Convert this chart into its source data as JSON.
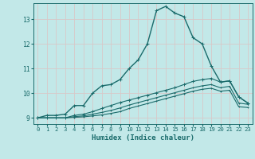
{
  "xlabel": "Humidex (Indice chaleur)",
  "background_color": "#c2e8e8",
  "grid_color": "#d8c8c8",
  "line_color": "#1a6b6b",
  "xlim": [
    -0.5,
    23.5
  ],
  "ylim": [
    8.75,
    13.65
  ],
  "yticks": [
    9,
    10,
    11,
    12,
    13
  ],
  "xticks": [
    0,
    1,
    2,
    3,
    4,
    5,
    6,
    7,
    8,
    9,
    10,
    11,
    12,
    13,
    14,
    15,
    16,
    17,
    18,
    19,
    20,
    21,
    22,
    23
  ],
  "series": [
    {
      "x": [
        0,
        1,
        2,
        3,
        4,
        5,
        6,
        7,
        8,
        9,
        10,
        11,
        12,
        13,
        14,
        15,
        16,
        17,
        18,
        19,
        20,
        21,
        22,
        23
      ],
      "y": [
        9.0,
        9.1,
        9.1,
        9.15,
        9.5,
        9.5,
        10.0,
        10.3,
        10.35,
        10.55,
        11.0,
        11.35,
        12.0,
        13.35,
        13.52,
        13.25,
        13.1,
        12.25,
        12.0,
        11.1,
        10.45,
        10.5,
        9.85,
        9.6
      ],
      "lw": 1.0,
      "ms": 3.0
    },
    {
      "x": [
        0,
        1,
        2,
        3,
        4,
        5,
        6,
        7,
        8,
        9,
        10,
        11,
        12,
        13,
        14,
        15,
        16,
        17,
        18,
        19,
        20,
        21,
        22,
        23
      ],
      "y": [
        9.0,
        9.0,
        9.0,
        9.0,
        9.1,
        9.15,
        9.25,
        9.38,
        9.5,
        9.62,
        9.72,
        9.82,
        9.92,
        10.02,
        10.12,
        10.22,
        10.35,
        10.48,
        10.55,
        10.6,
        10.45,
        10.5,
        9.85,
        9.6
      ],
      "lw": 0.8,
      "ms": 2.5
    },
    {
      "x": [
        0,
        1,
        2,
        3,
        4,
        5,
        6,
        7,
        8,
        9,
        10,
        11,
        12,
        13,
        14,
        15,
        16,
        17,
        18,
        19,
        20,
        21,
        22,
        23
      ],
      "y": [
        9.0,
        9.0,
        9.0,
        9.0,
        9.05,
        9.08,
        9.15,
        9.22,
        9.3,
        9.4,
        9.52,
        9.62,
        9.72,
        9.82,
        9.92,
        10.02,
        10.12,
        10.22,
        10.3,
        10.35,
        10.22,
        10.28,
        9.6,
        9.55
      ],
      "lw": 0.8,
      "ms": 2.0
    },
    {
      "x": [
        0,
        1,
        2,
        3,
        4,
        5,
        6,
        7,
        8,
        9,
        10,
        11,
        12,
        13,
        14,
        15,
        16,
        17,
        18,
        19,
        20,
        21,
        22,
        23
      ],
      "y": [
        9.0,
        9.0,
        9.0,
        9.0,
        9.02,
        9.04,
        9.08,
        9.12,
        9.18,
        9.25,
        9.38,
        9.48,
        9.58,
        9.68,
        9.78,
        9.88,
        9.98,
        10.08,
        10.16,
        10.2,
        10.08,
        10.12,
        9.45,
        9.42
      ],
      "lw": 0.8,
      "ms": 2.0
    }
  ]
}
